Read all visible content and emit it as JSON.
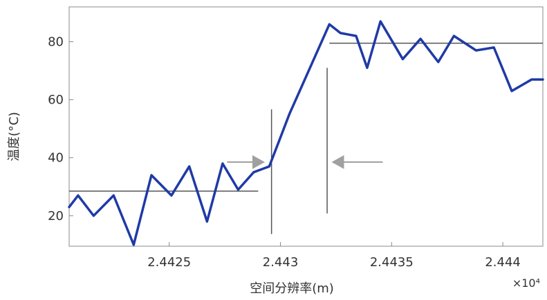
{
  "chart_data": {
    "type": "line",
    "title": "",
    "xlabel": "空间分辨率(m)",
    "ylabel": "温度(°C)",
    "x_multiplier_label": "×10⁴",
    "xlim": [
      2.44205,
      2.44418
    ],
    "ylim": [
      9.5,
      92
    ],
    "x_ticks": [
      2.4425,
      2.443,
      2.4435,
      2.444
    ],
    "x_tick_labels": [
      "2.4425",
      "2.443",
      "2.4435",
      "2.444"
    ],
    "y_ticks": [
      20,
      40,
      60,
      80
    ],
    "y_tick_labels": [
      "20",
      "40",
      "60",
      "80"
    ],
    "grid": false,
    "series": [
      {
        "color": "#1f3aa6",
        "x": [
          2.44205,
          2.44209,
          2.44216,
          2.44225,
          2.44234,
          2.44242,
          2.44251,
          2.44259,
          2.44267,
          2.44274,
          2.44281,
          2.44288,
          2.44295,
          2.44299,
          2.44304,
          2.44322,
          2.44327,
          2.44334,
          2.44339,
          2.44345,
          2.44355,
          2.44363,
          2.44371,
          2.44378,
          2.44388,
          2.44396,
          2.44404,
          2.44413,
          2.44418
        ],
        "y": [
          23,
          27,
          20,
          27,
          10,
          34,
          27,
          37,
          18,
          38,
          29,
          35,
          37,
          45,
          55,
          86,
          83,
          82,
          71,
          87,
          74,
          81,
          73,
          82,
          77,
          78,
          63,
          67,
          67
        ]
      }
    ],
    "annotations": {
      "low_plateau": {
        "x": [
          2.44205,
          2.4429
        ],
        "y": 28.5,
        "color": "#555555"
      },
      "high_plateau": {
        "x": [
          2.44322,
          2.44418
        ],
        "y": 79.5,
        "color": "#555555"
      },
      "boundary_left": {
        "x": 2.44296,
        "y": [
          13.7,
          56.7
        ],
        "color": "#555555"
      },
      "boundary_right": {
        "x": 2.44321,
        "y": [
          20.8,
          71.0
        ],
        "color": "#555555"
      },
      "arrow_left": {
        "from_x": 2.44276,
        "to_x": 2.44293,
        "y": 38.5,
        "color": "#a0a0a0"
      },
      "arrow_right": {
        "from_x": 2.44346,
        "to_x": 2.44323,
        "y": 38.5,
        "color": "#a0a0a0"
      }
    }
  }
}
